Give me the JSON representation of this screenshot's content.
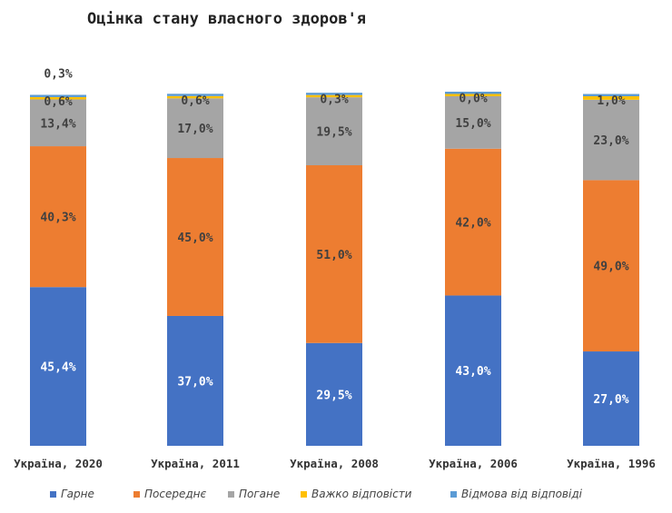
{
  "chart_data": {
    "type": "bar",
    "stacked": true,
    "percent_stacked": true,
    "title": "Оцінка стану власного здоров'я",
    "xlabel": "",
    "ylabel": "",
    "ylim": [
      0,
      100
    ],
    "grid": false,
    "legend_position": "bottom",
    "categories": [
      "Україна, 2020",
      "Україна, 2011",
      "Україна, 2008",
      "Україна, 2006",
      "Україна, 1996"
    ],
    "series": [
      {
        "name": "Гарне",
        "color": "#4472C4",
        "values": [
          45.4,
          37.0,
          29.5,
          43.0,
          27.0
        ],
        "labels": [
          "45,4%",
          "37,0%",
          "29,5%",
          "43,0%",
          "27,0%"
        ]
      },
      {
        "name": "Посереднє",
        "color": "#ED7D31",
        "values": [
          40.3,
          45.0,
          51.0,
          42.0,
          49.0
        ],
        "labels": [
          "40,3%",
          "45,0%",
          "51,0%",
          "42,0%",
          "49,0%"
        ]
      },
      {
        "name": "Погане",
        "color": "#A5A5A5",
        "values": [
          13.4,
          17.0,
          19.5,
          15.0,
          23.0
        ],
        "labels": [
          "13,4%",
          "17,0%",
          "19,5%",
          "15,0%",
          "23,0%"
        ]
      },
      {
        "name": "Важко відповісти",
        "color": "#FFC000",
        "values": [
          0.6,
          0.6,
          0.3,
          0.0,
          1.0
        ],
        "labels": [
          "0,6%",
          "0,6%",
          "0,3%",
          "0,0%",
          "1,0%"
        ]
      },
      {
        "name": "Відмова від відповіді",
        "color": "#5B9BD5",
        "values": [
          0.3,
          0.0,
          0.0,
          0.0,
          0.0
        ],
        "labels": [
          "0,3%",
          null,
          null,
          null,
          null
        ]
      }
    ]
  }
}
